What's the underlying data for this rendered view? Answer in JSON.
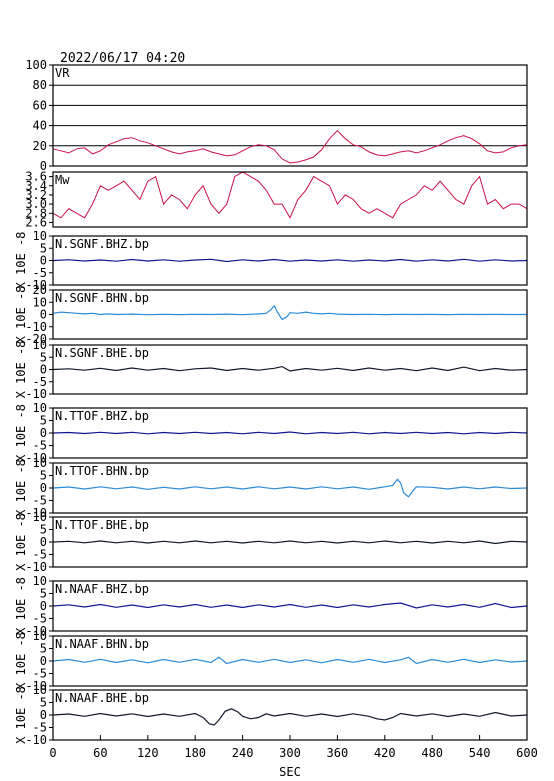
{
  "header": {
    "timestamp": "2022/06/17 04:20"
  },
  "colors": {
    "vr": "#cc1144",
    "mw": "#cc1144",
    "bhz": "#101890",
    "bhn": "#2a8ad8",
    "bhe": "#101828",
    "frame": "#000000",
    "grid": "#000000"
  },
  "chart_data": [
    {
      "type": "line",
      "label": "VR",
      "ylim": [
        0,
        100
      ],
      "yticks": [
        "0",
        "20",
        "40",
        "60",
        "80",
        "100"
      ],
      "grid": true,
      "x": [
        0,
        10,
        20,
        30,
        40,
        50,
        60,
        70,
        80,
        90,
        100,
        110,
        120,
        130,
        140,
        150,
        160,
        170,
        180,
        190,
        200,
        210,
        220,
        230,
        240,
        250,
        260,
        270,
        280,
        290,
        300,
        310,
        320,
        330,
        340,
        350,
        360,
        370,
        380,
        390,
        400,
        410,
        420,
        430,
        440,
        450,
        460,
        470,
        480,
        490,
        500,
        510,
        520,
        530,
        540,
        550,
        560,
        570,
        580,
        590,
        600
      ],
      "values": [
        17,
        15,
        13,
        17,
        18,
        12,
        15,
        21,
        24,
        27,
        28,
        25,
        23,
        20,
        17,
        14,
        12,
        14,
        15,
        17,
        14,
        12,
        10,
        11,
        15,
        19,
        21,
        20,
        16,
        7,
        3,
        4,
        6,
        9,
        16,
        27,
        35,
        27,
        21,
        19,
        14,
        11,
        10,
        12,
        14,
        15,
        13,
        15,
        18,
        21,
        25,
        28,
        30,
        27,
        22,
        15,
        13,
        14,
        18,
        20,
        21
      ]
    },
    {
      "type": "line",
      "label": "Mw",
      "ylim": [
        2.5,
        3.7
      ],
      "yticks": [
        "2.6",
        "2.8",
        "3.0",
        "3.2",
        "3.4",
        "3.6"
      ],
      "grid": false,
      "x": [
        0,
        10,
        20,
        30,
        40,
        50,
        60,
        70,
        80,
        90,
        100,
        110,
        120,
        130,
        140,
        150,
        160,
        170,
        180,
        190,
        200,
        210,
        220,
        230,
        240,
        250,
        260,
        270,
        280,
        290,
        300,
        310,
        320,
        330,
        340,
        350,
        360,
        370,
        380,
        390,
        400,
        410,
        420,
        430,
        440,
        450,
        460,
        470,
        480,
        490,
        500,
        510,
        520,
        530,
        540,
        550,
        560,
        570,
        580,
        590,
        600
      ],
      "values": [
        2.8,
        2.7,
        2.9,
        2.8,
        2.7,
        3.0,
        3.4,
        3.3,
        3.4,
        3.5,
        3.3,
        3.1,
        3.5,
        3.6,
        3.0,
        3.2,
        3.1,
        2.9,
        3.2,
        3.4,
        3.0,
        2.8,
        3.0,
        3.6,
        3.7,
        3.6,
        3.5,
        3.3,
        3.0,
        3.0,
        2.7,
        3.1,
        3.3,
        3.6,
        3.5,
        3.4,
        3.0,
        3.2,
        3.1,
        2.9,
        2.8,
        2.9,
        2.8,
        2.7,
        3.0,
        3.1,
        3.2,
        3.4,
        3.3,
        3.5,
        3.3,
        3.1,
        3.0,
        3.4,
        3.6,
        3.0,
        3.1,
        2.9,
        3.0,
        3.0,
        2.9
      ]
    },
    {
      "type": "line",
      "label": "N.SGNF.BHZ.bp",
      "channel": "bhz",
      "ylim": [
        -10,
        10
      ],
      "yticks": [
        "-10",
        "-5",
        "0",
        "5",
        "10"
      ],
      "yunit": "X 10E -8",
      "x": [
        0,
        20,
        40,
        60,
        80,
        100,
        120,
        140,
        160,
        180,
        200,
        220,
        240,
        260,
        280,
        300,
        320,
        340,
        360,
        380,
        400,
        420,
        440,
        460,
        480,
        500,
        520,
        540,
        560,
        580,
        600
      ],
      "values": [
        0,
        0.3,
        -0.2,
        0.2,
        -0.3,
        0.4,
        -0.2,
        0.3,
        -0.3,
        0.2,
        0.5,
        -0.4,
        0.3,
        -0.2,
        0.4,
        -0.3,
        0.2,
        -0.2,
        0.3,
        -0.3,
        0.2,
        -0.2,
        0.4,
        -0.3,
        0.3,
        -0.2,
        0.5,
        -0.3,
        0.3,
        -0.2,
        0
      ]
    },
    {
      "type": "line",
      "label": "N.SGNF.BHN.bp",
      "channel": "bhn",
      "ylim": [
        -20,
        20
      ],
      "yticks": [
        "-20",
        "-10",
        "0",
        "10",
        "20"
      ],
      "yunit": "X 10E -8",
      "x": [
        0,
        10,
        20,
        30,
        40,
        50,
        60,
        70,
        80,
        100,
        120,
        140,
        160,
        180,
        200,
        220,
        240,
        260,
        270,
        276,
        280,
        284,
        290,
        296,
        300,
        310,
        320,
        330,
        340,
        350,
        360,
        380,
        400,
        420,
        440,
        460,
        480,
        500,
        520,
        540,
        560,
        580,
        600
      ],
      "values": [
        1,
        2,
        1.5,
        1,
        0.5,
        1,
        0,
        0.5,
        0,
        0.3,
        -0.2,
        0.2,
        -0.1,
        0.2,
        0,
        0.3,
        -0.2,
        0.5,
        1,
        4,
        7,
        2,
        -4,
        -2,
        1.5,
        1,
        2,
        1,
        0.5,
        1,
        0.3,
        0,
        0.2,
        -0.1,
        0.2,
        0,
        0.1,
        -0.1,
        0.2,
        0,
        0.1,
        0,
        0
      ]
    },
    {
      "type": "line",
      "label": "N.SGNF.BHE.bp",
      "channel": "bhe",
      "ylim": [
        -10,
        10
      ],
      "yticks": [
        "-10",
        "-5",
        "0",
        "5",
        "10"
      ],
      "yunit": "X 10E -8",
      "x": [
        0,
        20,
        40,
        60,
        80,
        100,
        120,
        140,
        160,
        180,
        200,
        220,
        240,
        260,
        280,
        290,
        300,
        320,
        340,
        360,
        380,
        400,
        420,
        440,
        460,
        480,
        500,
        520,
        540,
        560,
        580,
        600
      ],
      "values": [
        0,
        0.3,
        -0.3,
        0.5,
        -0.4,
        0.6,
        -0.3,
        0.4,
        -0.5,
        0.3,
        0.6,
        -0.4,
        0.4,
        -0.3,
        0.5,
        1.2,
        -0.6,
        0.4,
        -0.3,
        0.5,
        -0.4,
        0.6,
        -0.3,
        0.4,
        -0.5,
        0.6,
        -0.4,
        1.0,
        -0.5,
        0.4,
        -0.3,
        0
      ]
    },
    {
      "type": "line",
      "label": "N.TTOF.BHZ.bp",
      "channel": "bhz",
      "ylim": [
        -10,
        10
      ],
      "yticks": [
        "-10",
        "-5",
        "0",
        "5",
        "10"
      ],
      "yunit": "X 10E -8",
      "x": [
        0,
        20,
        40,
        60,
        80,
        100,
        120,
        140,
        160,
        180,
        200,
        220,
        240,
        260,
        280,
        300,
        320,
        340,
        360,
        380,
        400,
        420,
        440,
        460,
        480,
        500,
        520,
        540,
        560,
        580,
        600
      ],
      "values": [
        0,
        0.2,
        -0.2,
        0.3,
        -0.2,
        0.3,
        -0.3,
        0.2,
        -0.2,
        0.3,
        -0.2,
        0.2,
        -0.3,
        0.3,
        -0.2,
        0.4,
        -0.3,
        0.2,
        -0.2,
        0.3,
        -0.3,
        0.2,
        -0.2,
        0.3,
        -0.2,
        0.2,
        -0.3,
        0.2,
        -0.2,
        0.3,
        0
      ]
    },
    {
      "type": "line",
      "label": "N.TTOF.BHN.bp",
      "channel": "bhn",
      "ylim": [
        -10,
        10
      ],
      "yticks": [
        "-10",
        "-5",
        "0",
        "5",
        "10"
      ],
      "yunit": "X 10E -8",
      "x": [
        0,
        20,
        40,
        60,
        80,
        100,
        120,
        140,
        160,
        180,
        200,
        220,
        240,
        260,
        280,
        300,
        320,
        340,
        360,
        380,
        400,
        420,
        430,
        436,
        440,
        444,
        450,
        456,
        460,
        480,
        500,
        520,
        540,
        560,
        580,
        600
      ],
      "values": [
        0,
        0.4,
        -0.4,
        0.5,
        -0.3,
        0.4,
        -0.5,
        0.3,
        -0.4,
        0.5,
        -0.3,
        0.4,
        -0.4,
        0.5,
        -0.3,
        0.4,
        -0.4,
        0.5,
        -0.3,
        0.4,
        -0.5,
        0.5,
        1,
        3.5,
        2,
        -2,
        -3.5,
        -1,
        0.5,
        0.3,
        -0.4,
        0.4,
        -0.3,
        0.4,
        -0.2,
        0
      ]
    },
    {
      "type": "line",
      "label": "N.TTOF.BHE.bp",
      "channel": "bhe",
      "ylim": [
        -10,
        10
      ],
      "yticks": [
        "-10",
        "-5",
        "0",
        "5",
        "10"
      ],
      "yunit": "X 10E -8",
      "x": [
        0,
        20,
        40,
        60,
        80,
        100,
        120,
        140,
        160,
        180,
        200,
        220,
        240,
        260,
        280,
        300,
        320,
        340,
        360,
        380,
        400,
        420,
        440,
        460,
        480,
        500,
        520,
        540,
        560,
        580,
        600
      ],
      "values": [
        0,
        0.3,
        -0.3,
        0.4,
        -0.3,
        0.3,
        -0.4,
        0.3,
        -0.3,
        0.4,
        -0.3,
        0.3,
        -0.4,
        0.3,
        -0.3,
        0.4,
        -0.3,
        0.3,
        -0.4,
        0.3,
        -0.3,
        0.4,
        -0.3,
        0.3,
        -0.4,
        0.3,
        -0.3,
        0.4,
        -0.6,
        0.3,
        0
      ]
    },
    {
      "type": "line",
      "label": "N.NAAF.BHZ.bp",
      "channel": "bhz",
      "ylim": [
        -10,
        10
      ],
      "yticks": [
        "-10",
        "-5",
        "0",
        "5",
        "10"
      ],
      "yunit": "X 10E -8",
      "x": [
        0,
        20,
        40,
        60,
        80,
        100,
        120,
        140,
        160,
        180,
        200,
        220,
        240,
        260,
        280,
        300,
        320,
        340,
        360,
        380,
        400,
        420,
        440,
        460,
        480,
        500,
        520,
        540,
        560,
        580,
        600
      ],
      "values": [
        0,
        0.5,
        -0.4,
        0.6,
        -0.5,
        0.4,
        -0.6,
        0.5,
        -0.4,
        0.6,
        -0.5,
        0.4,
        -0.6,
        0.5,
        -0.4,
        0.6,
        -0.5,
        0.4,
        -0.6,
        0.5,
        -0.4,
        0.6,
        1.2,
        -0.8,
        0.5,
        -0.4,
        0.6,
        -0.5,
        1.0,
        -0.6,
        0
      ]
    },
    {
      "type": "line",
      "label": "N.NAAF.BHN.bp",
      "channel": "bhn",
      "ylim": [
        -10,
        10
      ],
      "yticks": [
        "-10",
        "-5",
        "0",
        "5",
        "10"
      ],
      "yunit": "X 10E -8",
      "x": [
        0,
        20,
        40,
        60,
        80,
        100,
        120,
        140,
        160,
        180,
        200,
        210,
        220,
        240,
        260,
        280,
        300,
        320,
        340,
        360,
        380,
        400,
        420,
        440,
        450,
        460,
        480,
        500,
        520,
        540,
        560,
        580,
        600
      ],
      "values": [
        0,
        0.6,
        -0.5,
        0.7,
        -0.6,
        0.5,
        -0.7,
        0.6,
        -0.5,
        0.7,
        -0.6,
        1.5,
        -1,
        0.6,
        -0.5,
        0.7,
        -0.6,
        0.5,
        -0.7,
        0.6,
        -0.5,
        0.7,
        -0.6,
        0.5,
        1.5,
        -1,
        0.6,
        -0.5,
        0.7,
        -0.6,
        0.5,
        -0.4,
        0
      ]
    },
    {
      "type": "line",
      "label": "N.NAAF.BHE.bp",
      "channel": "bhe",
      "ylim": [
        -10,
        10
      ],
      "yticks": [
        "-10",
        "-5",
        "0",
        "5",
        "10"
      ],
      "yunit": "X 10E -8",
      "x": [
        0,
        20,
        40,
        60,
        80,
        100,
        120,
        140,
        160,
        180,
        190,
        198,
        204,
        210,
        218,
        226,
        234,
        240,
        250,
        260,
        270,
        280,
        300,
        320,
        340,
        360,
        380,
        400,
        410,
        420,
        430,
        440,
        460,
        480,
        500,
        520,
        540,
        560,
        580,
        600
      ],
      "values": [
        0,
        0.4,
        -0.5,
        0.6,
        -0.4,
        0.5,
        -0.6,
        0.4,
        -0.5,
        0.6,
        -1,
        -3.5,
        -4,
        -2,
        1.5,
        2.5,
        1.2,
        -0.5,
        -1.5,
        -1,
        0.5,
        -0.4,
        0.6,
        -0.5,
        0.4,
        -0.6,
        0.5,
        -0.5,
        -1.5,
        -2,
        -1,
        0.6,
        -0.4,
        0.5,
        -0.6,
        0.4,
        -0.5,
        1.0,
        -0.4,
        0
      ]
    }
  ],
  "xaxis": {
    "xlim": [
      0,
      600
    ],
    "ticks": [
      "0",
      "60",
      "120",
      "180",
      "240",
      "300",
      "360",
      "420",
      "480",
      "540",
      "600"
    ],
    "label": "SEC"
  }
}
